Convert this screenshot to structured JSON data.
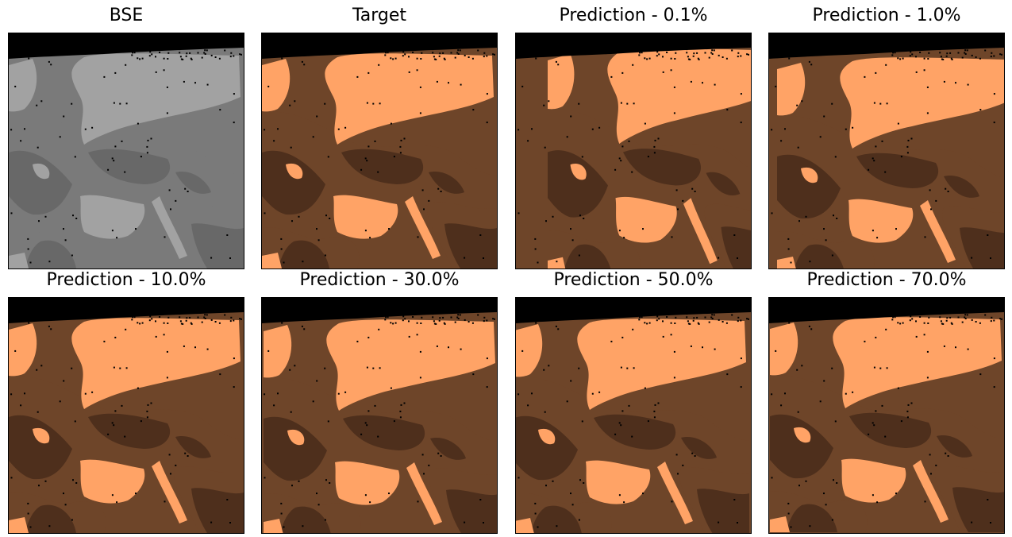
{
  "palette": {
    "background": "#000000",
    "phase_light": "#ffa366",
    "phase_mid": "#6e4529",
    "phase_dark": "#4e2f1c",
    "bse_bg": "#7a7a7a",
    "bse_light": "#a2a2a2",
    "bse_dark": "#686868"
  },
  "panels": [
    {
      "title": "BSE",
      "kind": "bse"
    },
    {
      "title": "Target",
      "kind": "seg"
    },
    {
      "title": "Prediction - 0.1%",
      "kind": "seg"
    },
    {
      "title": "Prediction - 1.0%",
      "kind": "seg"
    },
    {
      "title": "Prediction - 10.0%",
      "kind": "seg"
    },
    {
      "title": "Prediction - 30.0%",
      "kind": "seg"
    },
    {
      "title": "Prediction - 50.0%",
      "kind": "seg"
    },
    {
      "title": "Prediction - 70.0%",
      "kind": "seg"
    }
  ]
}
